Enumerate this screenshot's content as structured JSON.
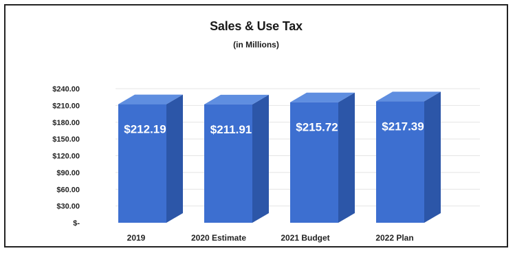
{
  "chart_data": {
    "type": "bar",
    "title": "Sales & Use Tax",
    "subtitle": "(in Millions)",
    "categories": [
      "2019",
      "2020 Estimate",
      "2021 Budget",
      "2022 Plan"
    ],
    "values": [
      212.19,
      211.91,
      215.72,
      217.39
    ],
    "data_labels": [
      "$212.19",
      "$211.91",
      "$215.72",
      "$217.39"
    ],
    "yticks": [
      0,
      30,
      60,
      90,
      120,
      150,
      180,
      210,
      240
    ],
    "ytick_labels": [
      "$-",
      "$30.00",
      "$60.00",
      "$90.00",
      "$120.00",
      "$150.00",
      "$180.00",
      "$210.00",
      "$240.00"
    ],
    "ylim": [
      0,
      240
    ],
    "grid": true,
    "legend": "none",
    "bar_color": "#3d6fd0",
    "bar_side_color": "#2c56a8",
    "bar_top_color": "#5f8ee0"
  }
}
